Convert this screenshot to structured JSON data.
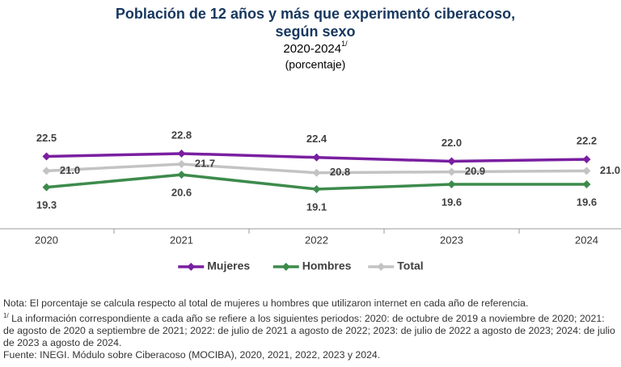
{
  "chart_data": {
    "type": "line",
    "title": [
      "Población de 12 años y más que experimentó ciberacoso,",
      "según sexo"
    ],
    "subtitle": "2020-2024",
    "subtitle_note": "1/",
    "unit_label": "(porcentaje)",
    "categories": [
      "2020",
      "2021",
      "2022",
      "2023",
      "2024"
    ],
    "series": [
      {
        "name": "Mujeres",
        "color": "#7a1fa0",
        "values": [
          22.5,
          22.8,
          22.4,
          22.0,
          22.2
        ],
        "value_labels": [
          "22.5",
          "22.8",
          "22.4",
          "22.0",
          "22.2"
        ],
        "label_position": "above"
      },
      {
        "name": "Hombres",
        "color": "#3d8b4c",
        "values": [
          19.3,
          20.6,
          19.1,
          19.6,
          19.6
        ],
        "value_labels": [
          "19.3",
          "20.6",
          "19.1",
          "19.6",
          "19.6"
        ],
        "label_position": "below"
      },
      {
        "name": "Total",
        "color": "#c3c3c3",
        "values": [
          21.0,
          21.7,
          20.8,
          20.9,
          21.0
        ],
        "value_labels": [
          "21.0",
          "21.7",
          "20.8",
          "20.9",
          "21.0"
        ],
        "label_position": "right"
      }
    ],
    "legend": "bottom"
  },
  "notes": {
    "note": "Nota: El porcentaje se calcula respecto al total de mujeres u hombres que utilizaron internet en cada año de referencia.",
    "footnote_marker": "1/",
    "footnote": "La información correspondiente a cada año se refiere a los siguientes periodos: 2020: de octubre de 2019 a noviembre de 2020; 2021: de agosto de 2020 a septiembre de 2021; 2022: de julio de 2021 a agosto de 2022; 2023: de julio de 2022 a agosto de 2023; 2024: de julio de 2023 a agosto de 2024.",
    "source": "Fuente: INEGI. Módulo sobre Ciberacoso (MOCIBA), 2020, 2021, 2022, 2023 y 2024."
  }
}
